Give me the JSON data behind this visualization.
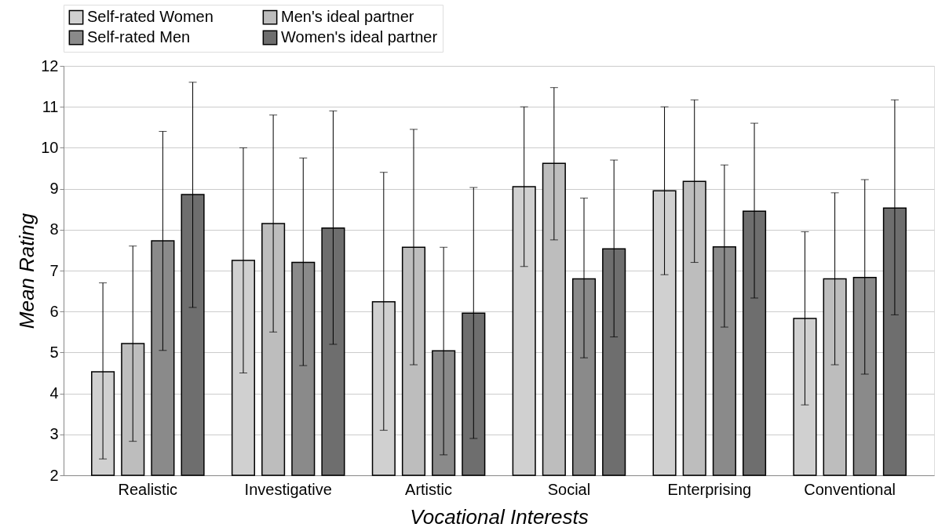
{
  "chart_data": {
    "type": "bar",
    "xlabel": "Vocational Interests",
    "ylabel": "Mean Rating",
    "categories": [
      "Realistic",
      "Investigative",
      "Artistic",
      "Social",
      "Enterprising",
      "Conventional"
    ],
    "series": [
      {
        "name": "Self-rated Women",
        "color": "#d0d0d0",
        "values": [
          4.53,
          7.25,
          6.24,
          9.05,
          8.95,
          5.83
        ],
        "errors": [
          [
            2.4,
            6.7
          ],
          [
            4.5,
            10.0
          ],
          [
            3.1,
            9.4
          ],
          [
            7.1,
            11.0
          ],
          [
            6.9,
            11.0
          ],
          [
            3.72,
            7.95
          ]
        ]
      },
      {
        "name": "Men's ideal partner",
        "color": "#bdbdbd",
        "values": [
          5.22,
          8.15,
          7.57,
          9.62,
          9.18,
          6.8
        ],
        "errors": [
          [
            2.83,
            7.6
          ],
          [
            5.5,
            10.8
          ],
          [
            4.7,
            10.45
          ],
          [
            7.75,
            11.47
          ],
          [
            7.2,
            11.17
          ],
          [
            4.7,
            8.9
          ]
        ]
      },
      {
        "name": "Self-rated Men",
        "color": "#8a8a8a",
        "values": [
          7.73,
          7.2,
          5.04,
          6.8,
          7.58,
          6.83
        ],
        "errors": [
          [
            5.05,
            10.4
          ],
          [
            4.68,
            9.75
          ],
          [
            2.5,
            7.57
          ],
          [
            4.87,
            8.77
          ],
          [
            5.62,
            9.58
          ],
          [
            4.47,
            9.22
          ]
        ]
      },
      {
        "name": "Women's ideal partner",
        "color": "#6e6e6e",
        "values": [
          8.86,
          8.04,
          5.96,
          7.53,
          8.45,
          8.53
        ],
        "errors": [
          [
            6.1,
            11.6
          ],
          [
            5.2,
            10.9
          ],
          [
            2.9,
            9.03
          ],
          [
            5.38,
            9.7
          ],
          [
            6.33,
            10.6
          ],
          [
            5.92,
            11.17
          ]
        ]
      }
    ],
    "ylim": [
      2,
      12
    ],
    "yticks": [
      2,
      3,
      4,
      5,
      6,
      7,
      8,
      9,
      10,
      11,
      12
    ],
    "grid": "y",
    "legend": "top"
  }
}
